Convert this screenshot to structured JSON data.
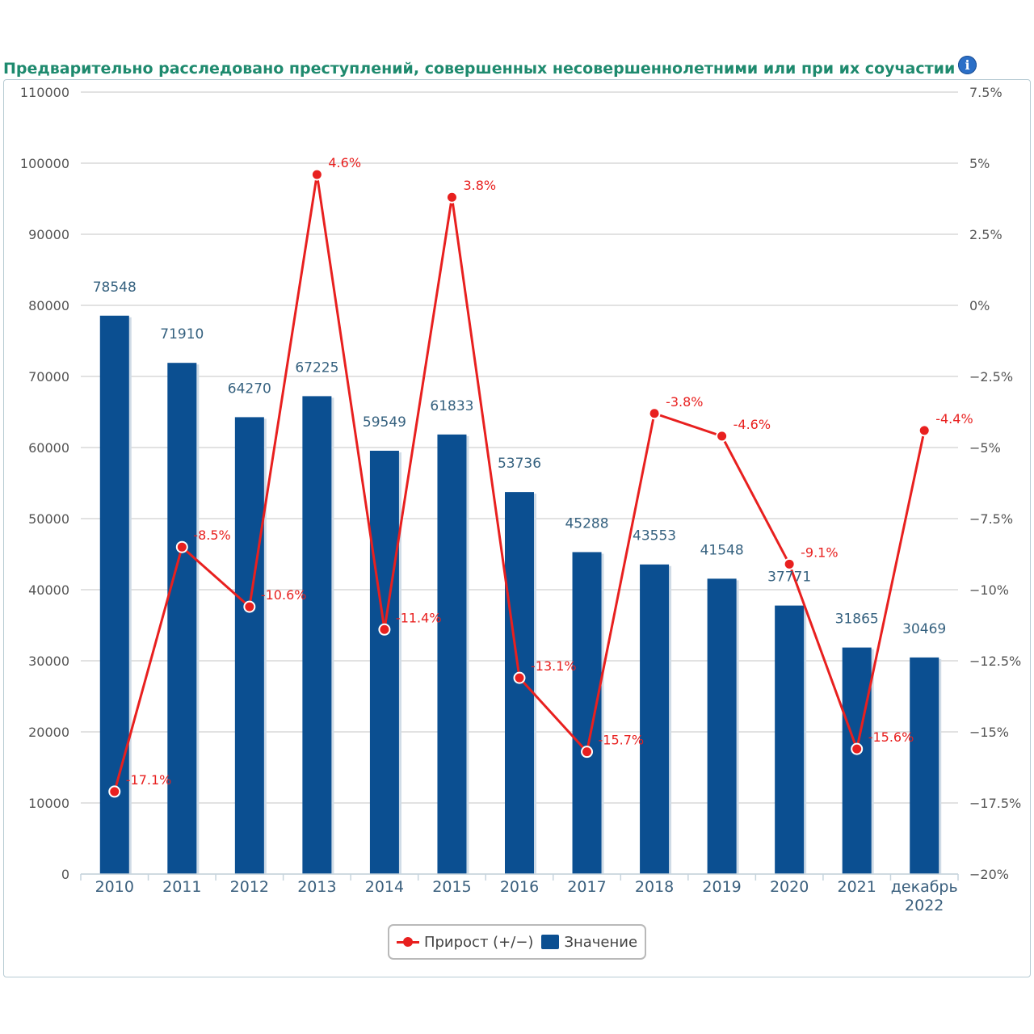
{
  "page": {
    "title": "Предварительно расследовано преступлений, совершенных несовершеннолетними или при их соучастии",
    "info_icon": "info-icon"
  },
  "legend": {
    "line_label": "Прирост (+/−)",
    "bar_label": "Значение"
  },
  "colors": {
    "bar": "#0b4f91",
    "line": "#e8201f",
    "title": "#1e8a6e",
    "grid": "#d8d8d8"
  },
  "chart_data": {
    "type": "bar",
    "title": "Предварительно расследовано преступлений, совершенных несовершеннолетними или при их соучастии",
    "categories": [
      "2010",
      "2011",
      "2012",
      "2013",
      "2014",
      "2015",
      "2016",
      "2017",
      "2018",
      "2019",
      "2020",
      "2021",
      "декабрь 2022"
    ],
    "category_lines": [
      [
        "2010"
      ],
      [
        "2011"
      ],
      [
        "2012"
      ],
      [
        "2013"
      ],
      [
        "2014"
      ],
      [
        "2015"
      ],
      [
        "2016"
      ],
      [
        "2017"
      ],
      [
        "2018"
      ],
      [
        "2019"
      ],
      [
        "2020"
      ],
      [
        "2021"
      ],
      [
        "декабрь",
        "2022"
      ]
    ],
    "series": [
      {
        "name": "Значение",
        "type": "bar",
        "axis": "left",
        "values": [
          78548,
          71910,
          64270,
          67225,
          59549,
          61833,
          53736,
          45288,
          43553,
          41548,
          37771,
          31865,
          30469
        ],
        "labels": [
          "78548",
          "71910",
          "64270",
          "67225",
          "59549",
          "61833",
          "53736",
          "45288",
          "43553",
          "41548",
          "37771",
          "31865",
          "30469"
        ]
      },
      {
        "name": "Прирост (+/−)",
        "type": "line",
        "axis": "right",
        "values": [
          -17.1,
          -8.5,
          -10.6,
          4.6,
          -11.4,
          3.8,
          -13.1,
          -15.7,
          -3.8,
          -4.6,
          -9.1,
          -15.6,
          -4.4
        ],
        "labels": [
          "-17.1%",
          "-8.5%",
          "-10.6%",
          "4.6%",
          "-11.4%",
          "3.8%",
          "-13.1%",
          "-15.7%",
          "-3.8%",
          "-4.6%",
          "-9.1%",
          "-15.6%",
          "-4.4%"
        ]
      }
    ],
    "y_left": {
      "ylim": [
        0,
        110000
      ],
      "ticks": [
        0,
        10000,
        20000,
        30000,
        40000,
        50000,
        60000,
        70000,
        80000,
        90000,
        100000,
        110000
      ],
      "tick_labels": [
        "0",
        "10000",
        "20000",
        "30000",
        "40000",
        "50000",
        "60000",
        "70000",
        "80000",
        "90000",
        "100000",
        "110000"
      ]
    },
    "y_right": {
      "ylim": [
        -20,
        7.5
      ],
      "ticks": [
        -20,
        -17.5,
        -15,
        -12.5,
        -10,
        -7.5,
        -5,
        -2.5,
        0,
        2.5,
        5,
        7.5
      ],
      "tick_labels": [
        "−20%",
        "−17.5%",
        "−15%",
        "−12.5%",
        "−10%",
        "−7.5%",
        "−5%",
        "−2.5%",
        "0%",
        "2.5%",
        "5%",
        "7.5%"
      ]
    },
    "grid": true,
    "legend_position": "bottom-center"
  }
}
